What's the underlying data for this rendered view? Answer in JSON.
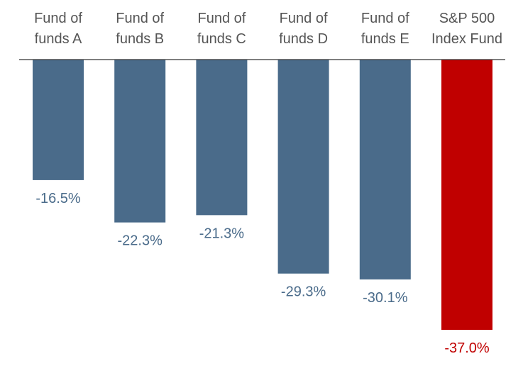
{
  "chart_data": {
    "type": "bar",
    "categories": [
      [
        "Fund of",
        "funds A"
      ],
      [
        "Fund of",
        "funds B"
      ],
      [
        "Fund of",
        "funds C"
      ],
      [
        "Fund of",
        "funds D"
      ],
      [
        "Fund of",
        "funds E"
      ],
      [
        "S&P 500",
        "Index Fund"
      ]
    ],
    "values": [
      -16.5,
      -22.3,
      -21.3,
      -29.3,
      -30.1,
      -37.0
    ],
    "value_labels": [
      "-16.5%",
      "-22.3%",
      "-21.3%",
      "-29.3%",
      "-30.1%",
      "-37.0%"
    ],
    "colors": [
      "#4a6b8a",
      "#4a6b8a",
      "#4a6b8a",
      "#4a6b8a",
      "#4a6b8a",
      "#c00000"
    ],
    "label_colors": [
      "#4a6b8a",
      "#4a6b8a",
      "#4a6b8a",
      "#4a6b8a",
      "#4a6b8a",
      "#c00000"
    ],
    "category_label_color": "#555555",
    "baseline_color": "#333333",
    "ylim": [
      -37.0,
      0
    ],
    "grid": false,
    "legend": "none",
    "title": "",
    "xlabel": "",
    "ylabel": ""
  }
}
